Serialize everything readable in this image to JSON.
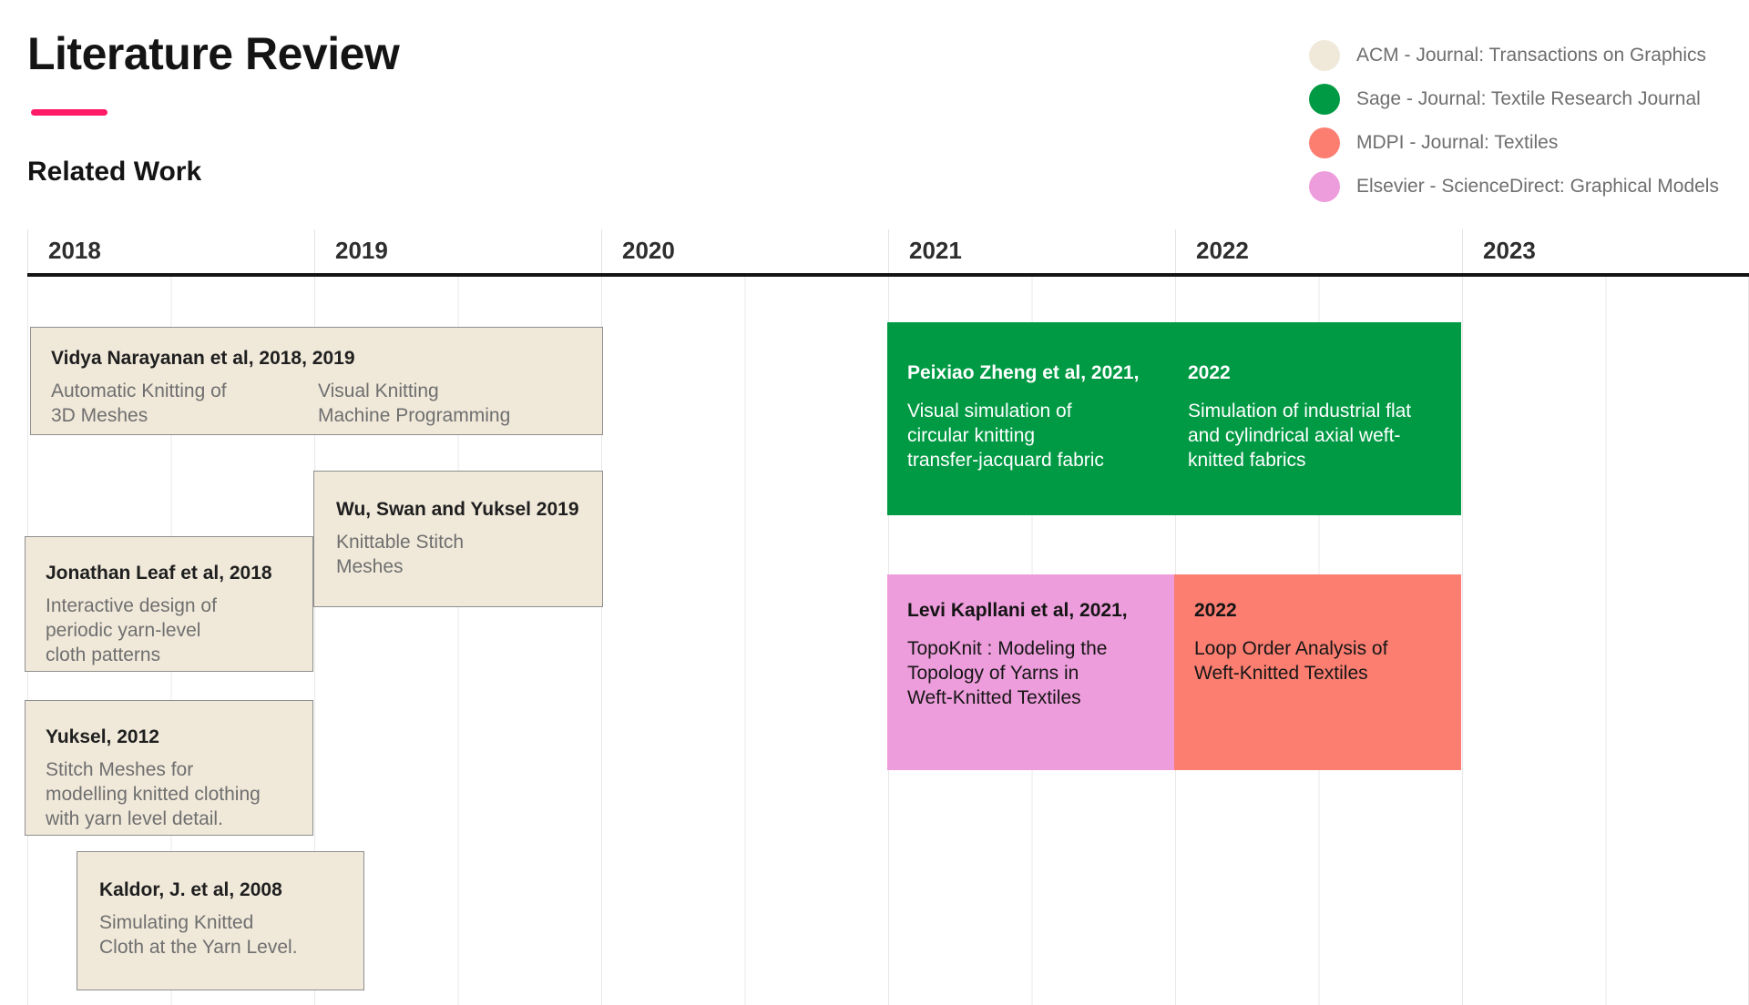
{
  "header": {
    "title": "Literature Review",
    "subtitle": "Related Work"
  },
  "colors": {
    "accent": "#ff1a66",
    "acm": "#f0e9da",
    "sage": "#009a44",
    "mdpi": "#fb7e71",
    "elsevier": "#ee9ddc"
  },
  "legend": {
    "items": [
      {
        "id": "acm",
        "label": "ACM - Journal: Transactions on Graphics",
        "color": "#f0e9da"
      },
      {
        "id": "sage",
        "label": "Sage - Journal: Textile Research Journal",
        "color": "#009a44"
      },
      {
        "id": "mdpi",
        "label": "MDPI - Journal: Textiles",
        "color": "#fb7e71"
      },
      {
        "id": "elsevier",
        "label": "Elsevier - ScienceDirect: Graphical Models",
        "color": "#ee9ddc"
      }
    ]
  },
  "timeline": {
    "years": [
      "2018",
      "2019",
      "2020",
      "2021",
      "2022",
      "2023"
    ]
  },
  "cards": {
    "narayanan": {
      "title": "Vidya Narayanan et al, 2018, 2019",
      "text_2018": "Automatic Knitting of\n3D Meshes",
      "text_2019": "Visual Knitting\nMachine Programming"
    },
    "wu": {
      "title": "Wu, Swan and Yuksel 2019",
      "text": "Knittable Stitch\nMeshes"
    },
    "leaf": {
      "title": "Jonathan Leaf et al, 2018",
      "text": "Interactive design of\nperiodic yarn-level\ncloth patterns"
    },
    "yuksel": {
      "title": "Yuksel, 2012",
      "text": "Stitch Meshes for\nmodelling knitted clothing\nwith yarn level detail."
    },
    "kaldor": {
      "title": "Kaldor, J. et al, 2008",
      "text": "Simulating Knitted\nCloth at the Yarn Level."
    },
    "zheng": {
      "title_2021": "Peixiao Zheng et al, 2021,",
      "text_2021": "Visual simulation of\ncircular knitting\ntransfer-jacquard fabric",
      "title_2022": "2022",
      "text_2022": "Simulation of industrial flat\nand cylindrical axial weft-\nknitted fabrics"
    },
    "kapllani_2021": {
      "title": "Levi Kapllani et al, 2021,",
      "text": "TopoKnit : Modeling the\nTopology of Yarns in\nWeft-Knitted Textiles"
    },
    "kapllani_2022": {
      "title": "2022",
      "text": "Loop Order Analysis of\nWeft-Knitted Textiles"
    }
  }
}
